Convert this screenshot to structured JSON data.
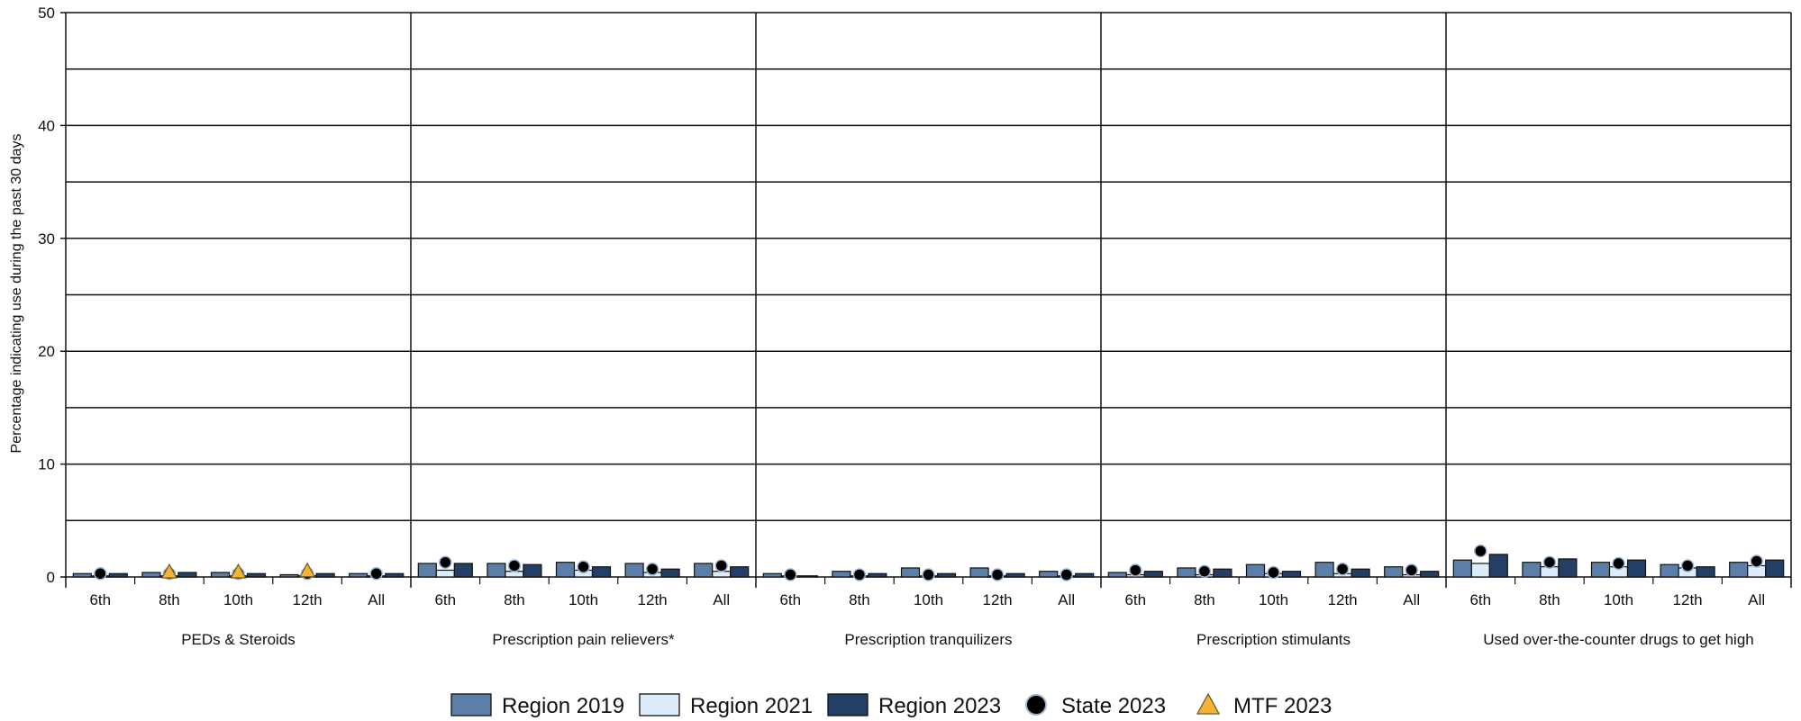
{
  "chart_data": {
    "type": "bar",
    "ylabel": "Percentage indicating use during the past 30 days",
    "ylim": [
      0,
      50
    ],
    "y_ticks": [
      0,
      10,
      20,
      30,
      40,
      50
    ],
    "grid": true,
    "legend_position": "bottom",
    "grades": [
      "6th",
      "8th",
      "10th",
      "12th",
      "All"
    ],
    "groups": [
      "PEDs & Steroids",
      "Prescription pain relievers*",
      "Prescription tranquilizers",
      "Prescription stimulants",
      "Used over-the-counter drugs to get high"
    ],
    "series": [
      {
        "name": "Region 2019",
        "color": "#5b7fa6",
        "kind": "bar",
        "values": [
          [
            0.3,
            0.4,
            0.4,
            0.2,
            0.3
          ],
          [
            1.2,
            1.2,
            1.3,
            1.2,
            1.2
          ],
          [
            0.3,
            0.5,
            0.8,
            0.8,
            0.5
          ],
          [
            0.4,
            0.8,
            1.1,
            1.3,
            0.9
          ],
          [
            1.5,
            1.3,
            1.3,
            1.1,
            1.3
          ]
        ]
      },
      {
        "name": "Region 2021",
        "color": "#dcecfa",
        "kind": "bar",
        "values": [
          [
            0.1,
            0.1,
            0.1,
            0.1,
            0.1
          ],
          [
            0.6,
            0.5,
            0.6,
            0.4,
            0.5
          ],
          [
            0.1,
            0.1,
            0.1,
            0.1,
            0.1
          ],
          [
            0.2,
            0.2,
            0.3,
            0.3,
            0.2
          ],
          [
            1.2,
            0.9,
            0.9,
            0.8,
            1.0
          ]
        ]
      },
      {
        "name": "Region 2023",
        "color": "#233f66",
        "kind": "bar",
        "values": [
          [
            0.3,
            0.4,
            0.3,
            0.3,
            0.3
          ],
          [
            1.2,
            1.1,
            0.9,
            0.7,
            0.9
          ],
          [
            0.1,
            0.3,
            0.3,
            0.3,
            0.3
          ],
          [
            0.5,
            0.7,
            0.5,
            0.7,
            0.5
          ],
          [
            2.0,
            1.6,
            1.5,
            0.9,
            1.5
          ]
        ]
      },
      {
        "name": "State 2023",
        "color": "#000000",
        "kind": "dot",
        "values": [
          [
            0.3,
            0.3,
            0.3,
            0.3,
            0.3
          ],
          [
            1.3,
            1.0,
            0.9,
            0.7,
            1.0
          ],
          [
            0.2,
            0.2,
            0.2,
            0.2,
            0.2
          ],
          [
            0.6,
            0.5,
            0.4,
            0.7,
            0.6
          ],
          [
            2.3,
            1.3,
            1.2,
            1.0,
            1.4
          ]
        ]
      },
      {
        "name": "MTF 2023",
        "color": "#f5b335",
        "kind": "triangle",
        "values": [
          [
            null,
            0.4,
            0.4,
            0.5,
            null
          ],
          [
            null,
            null,
            null,
            null,
            null
          ],
          [
            null,
            null,
            null,
            null,
            null
          ],
          [
            null,
            null,
            null,
            null,
            null
          ],
          [
            null,
            null,
            null,
            null,
            null
          ]
        ]
      }
    ]
  }
}
